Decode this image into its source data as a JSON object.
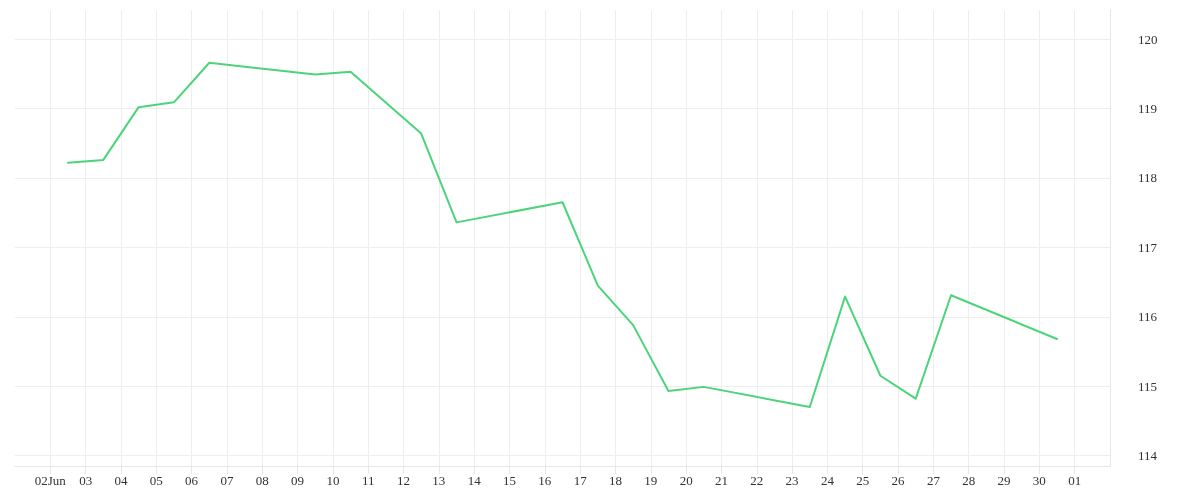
{
  "chart_data": {
    "type": "line",
    "x": [
      "--06-02T12:00",
      "--06-03T12:00",
      "--06-04T12:00",
      "--06-05T12:00",
      "--06-06T12:00",
      "--06-09T12:00",
      "--06-10T12:00",
      "--06-12T12:00",
      "--06-13T12:00",
      "--06-16T12:00",
      "--06-17T12:00",
      "--06-18T12:00",
      "--06-19T12:00",
      "--06-20T12:00",
      "--06-23T12:00",
      "--06-24T12:00",
      "--06-25T12:00",
      "--06-26T12:00",
      "--06-27T12:00",
      "--06-30T12:00"
    ],
    "series": [
      {
        "color": "#4cd47a",
        "values": [
          118.22,
          118.26,
          119.02,
          119.09,
          119.66,
          119.49,
          119.53,
          118.64,
          117.36,
          117.65,
          116.45,
          115.88,
          114.93,
          114.99,
          114.7,
          116.29,
          115.15,
          114.82,
          116.31,
          115.68
        ]
      }
    ],
    "xlim": [
      "--06-01",
      "--07-02"
    ],
    "xticks": [
      {
        "value": "--06-02",
        "label": "02Jun"
      },
      {
        "value": "--06-03",
        "label": "03"
      },
      {
        "value": "--06-04",
        "label": "04"
      },
      {
        "value": "--06-05",
        "label": "05"
      },
      {
        "value": "--06-06",
        "label": "06"
      },
      {
        "value": "--06-07",
        "label": "07"
      },
      {
        "value": "--06-08",
        "label": "08"
      },
      {
        "value": "--06-09",
        "label": "09"
      },
      {
        "value": "--06-10",
        "label": "10"
      },
      {
        "value": "--06-11",
        "label": "11"
      },
      {
        "value": "--06-12",
        "label": "12"
      },
      {
        "value": "--06-13",
        "label": "13"
      },
      {
        "value": "--06-14",
        "label": "14"
      },
      {
        "value": "--06-15",
        "label": "15"
      },
      {
        "value": "--06-16",
        "label": "16"
      },
      {
        "value": "--06-17",
        "label": "17"
      },
      {
        "value": "--06-18",
        "label": "18"
      },
      {
        "value": "--06-19",
        "label": "19"
      },
      {
        "value": "--06-20",
        "label": "20"
      },
      {
        "value": "--06-21",
        "label": "21"
      },
      {
        "value": "--06-22",
        "label": "22"
      },
      {
        "value": "--06-23",
        "label": "23"
      },
      {
        "value": "--06-24",
        "label": "24"
      },
      {
        "value": "--06-25",
        "label": "25"
      },
      {
        "value": "--06-26",
        "label": "26"
      },
      {
        "value": "--06-27",
        "label": "27"
      },
      {
        "value": "--06-28",
        "label": "28"
      },
      {
        "value": "--06-29",
        "label": "29"
      },
      {
        "value": "--06-30",
        "label": "30"
      },
      {
        "value": "--07-01",
        "label": "01"
      }
    ],
    "ylim": [
      113.85,
      120.42
    ],
    "yticks": [
      114,
      115,
      116,
      117,
      118,
      119,
      120
    ],
    "grid": true,
    "marker": "none",
    "line_style": "solid"
  }
}
